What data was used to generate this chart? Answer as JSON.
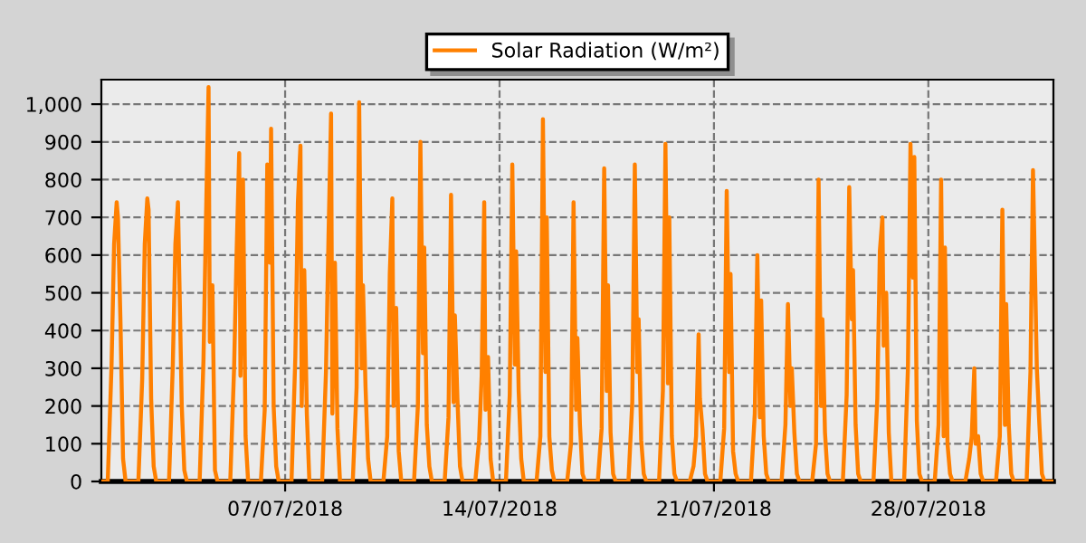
{
  "chart_data": {
    "type": "line",
    "xlim": [
      "2018-07-01T00:00",
      "2018-08-01T02:00"
    ],
    "xticks": [
      {
        "value": "2018-07-07",
        "label": "07/07/2018"
      },
      {
        "value": "2018-07-14",
        "label": "14/07/2018"
      },
      {
        "value": "2018-07-21",
        "label": "21/07/2018"
      },
      {
        "value": "2018-07-28",
        "label": "28/07/2018"
      }
    ],
    "ylim": [
      0,
      1065
    ],
    "yticks": [
      0,
      100,
      200,
      300,
      400,
      500,
      600,
      700,
      800,
      900,
      {
        "value": 1000,
        "label": "1,000"
      }
    ],
    "grid": true,
    "legend": "top",
    "line_style": "solid",
    "marker": "none",
    "series": [
      {
        "name": "Solar Radiation (W/m²)",
        "color": "#ff8000",
        "x": [
          "2018-07-01T00:00",
          "2018-07-01T05:00",
          "2018-07-01T08:00",
          "2018-07-01T10:00",
          "2018-07-01T12:00",
          "2018-07-01T13:00",
          "2018-07-01T15:00",
          "2018-07-01T17:00",
          "2018-07-01T19:00",
          "2018-07-02T05:00",
          "2018-07-02T08:00",
          "2018-07-02T10:00",
          "2018-07-02T12:00",
          "2018-07-02T13:00",
          "2018-07-02T15:00",
          "2018-07-02T17:00",
          "2018-07-02T19:00",
          "2018-07-03T05:00",
          "2018-07-03T08:00",
          "2018-07-03T10:00",
          "2018-07-03T12:00",
          "2018-07-03T13:00",
          "2018-07-03T15:00",
          "2018-07-03T17:00",
          "2018-07-03T19:00",
          "2018-07-04T05:00",
          "2018-07-04T08:00",
          "2018-07-04T10:00",
          "2018-07-04T12:00",
          "2018-07-04T13:00",
          "2018-07-04T15:00",
          "2018-07-04T17:00",
          "2018-07-04T19:00",
          "2018-07-05T05:00",
          "2018-07-05T08:00",
          "2018-07-05T10:00",
          "2018-07-05T12:00",
          "2018-07-05T13:00",
          "2018-07-05T15:00",
          "2018-07-05T17:00",
          "2018-07-05T19:00",
          "2018-07-06T05:00",
          "2018-07-06T08:00",
          "2018-07-06T10:00",
          "2018-07-06T12:00",
          "2018-07-06T13:00",
          "2018-07-06T15:00",
          "2018-07-06T17:00",
          "2018-07-06T19:00",
          "2018-07-07T05:00",
          "2018-07-07T08:00",
          "2018-07-07T10:00",
          "2018-07-07T12:00",
          "2018-07-07T13:00",
          "2018-07-07T15:00",
          "2018-07-07T17:00",
          "2018-07-07T19:00",
          "2018-07-08T05:00",
          "2018-07-08T08:00",
          "2018-07-08T10:00",
          "2018-07-08T12:00",
          "2018-07-08T13:00",
          "2018-07-08T15:00",
          "2018-07-08T17:00",
          "2018-07-08T19:00",
          "2018-07-09T05:00",
          "2018-07-09T08:00",
          "2018-07-09T10:00",
          "2018-07-09T12:00",
          "2018-07-09T13:00",
          "2018-07-09T15:00",
          "2018-07-09T17:00",
          "2018-07-09T19:00",
          "2018-07-10T05:00",
          "2018-07-10T08:00",
          "2018-07-10T10:00",
          "2018-07-10T12:00",
          "2018-07-10T13:00",
          "2018-07-10T15:00",
          "2018-07-10T17:00",
          "2018-07-10T19:00",
          "2018-07-11T05:00",
          "2018-07-11T08:00",
          "2018-07-11T10:00",
          "2018-07-11T12:00",
          "2018-07-11T13:00",
          "2018-07-11T15:00",
          "2018-07-11T17:00",
          "2018-07-11T19:00",
          "2018-07-12T05:00",
          "2018-07-12T08:00",
          "2018-07-12T10:00",
          "2018-07-12T12:00",
          "2018-07-12T13:00",
          "2018-07-12T15:00",
          "2018-07-12T17:00",
          "2018-07-12T19:00",
          "2018-07-13T05:00",
          "2018-07-13T08:00",
          "2018-07-13T10:00",
          "2018-07-13T12:00",
          "2018-07-13T13:00",
          "2018-07-13T15:00",
          "2018-07-13T17:00",
          "2018-07-13T19:00",
          "2018-07-14T05:00",
          "2018-07-14T08:00",
          "2018-07-14T10:00",
          "2018-07-14T12:00",
          "2018-07-14T13:00",
          "2018-07-14T15:00",
          "2018-07-14T17:00",
          "2018-07-14T19:00",
          "2018-07-15T05:00",
          "2018-07-15T08:00",
          "2018-07-15T10:00",
          "2018-07-15T12:00",
          "2018-07-15T13:00",
          "2018-07-15T15:00",
          "2018-07-15T17:00",
          "2018-07-15T19:00",
          "2018-07-16T05:00",
          "2018-07-16T08:00",
          "2018-07-16T10:00",
          "2018-07-16T12:00",
          "2018-07-16T13:00",
          "2018-07-16T15:00",
          "2018-07-16T17:00",
          "2018-07-16T19:00",
          "2018-07-17T05:00",
          "2018-07-17T08:00",
          "2018-07-17T10:00",
          "2018-07-17T12:00",
          "2018-07-17T13:00",
          "2018-07-17T15:00",
          "2018-07-17T17:00",
          "2018-07-17T19:00",
          "2018-07-18T05:00",
          "2018-07-18T08:00",
          "2018-07-18T10:00",
          "2018-07-18T12:00",
          "2018-07-18T13:00",
          "2018-07-18T15:00",
          "2018-07-18T17:00",
          "2018-07-18T19:00",
          "2018-07-19T05:00",
          "2018-07-19T08:00",
          "2018-07-19T10:00",
          "2018-07-19T12:00",
          "2018-07-19T13:00",
          "2018-07-19T15:00",
          "2018-07-19T17:00",
          "2018-07-19T19:00",
          "2018-07-20T05:00",
          "2018-07-20T08:00",
          "2018-07-20T10:00",
          "2018-07-20T12:00",
          "2018-07-20T13:00",
          "2018-07-20T15:00",
          "2018-07-20T17:00",
          "2018-07-20T19:00",
          "2018-07-21T05:00",
          "2018-07-21T08:00",
          "2018-07-21T10:00",
          "2018-07-21T12:00",
          "2018-07-21T13:00",
          "2018-07-21T15:00",
          "2018-07-21T17:00",
          "2018-07-21T19:00",
          "2018-07-22T05:00",
          "2018-07-22T08:00",
          "2018-07-22T10:00",
          "2018-07-22T12:00",
          "2018-07-22T13:00",
          "2018-07-22T15:00",
          "2018-07-22T17:00",
          "2018-07-22T19:00",
          "2018-07-23T05:00",
          "2018-07-23T08:00",
          "2018-07-23T10:00",
          "2018-07-23T12:00",
          "2018-07-23T13:00",
          "2018-07-23T15:00",
          "2018-07-23T17:00",
          "2018-07-23T19:00",
          "2018-07-24T05:00",
          "2018-07-24T08:00",
          "2018-07-24T10:00",
          "2018-07-24T12:00",
          "2018-07-24T13:00",
          "2018-07-24T15:00",
          "2018-07-24T17:00",
          "2018-07-24T19:00",
          "2018-07-25T05:00",
          "2018-07-25T08:00",
          "2018-07-25T10:00",
          "2018-07-25T12:00",
          "2018-07-25T13:00",
          "2018-07-25T15:00",
          "2018-07-25T17:00",
          "2018-07-25T19:00",
          "2018-07-26T05:00",
          "2018-07-26T08:00",
          "2018-07-26T10:00",
          "2018-07-26T12:00",
          "2018-07-26T13:00",
          "2018-07-26T15:00",
          "2018-07-26T17:00",
          "2018-07-26T19:00",
          "2018-07-27T05:00",
          "2018-07-27T08:00",
          "2018-07-27T10:00",
          "2018-07-27T12:00",
          "2018-07-27T13:00",
          "2018-07-27T15:00",
          "2018-07-27T17:00",
          "2018-07-27T19:00",
          "2018-07-28T05:00",
          "2018-07-28T08:00",
          "2018-07-28T10:00",
          "2018-07-28T12:00",
          "2018-07-28T13:00",
          "2018-07-28T15:00",
          "2018-07-28T17:00",
          "2018-07-28T19:00",
          "2018-07-29T05:00",
          "2018-07-29T08:00",
          "2018-07-29T10:00",
          "2018-07-29T12:00",
          "2018-07-29T13:00",
          "2018-07-29T15:00",
          "2018-07-29T17:00",
          "2018-07-29T19:00",
          "2018-07-30T05:00",
          "2018-07-30T08:00",
          "2018-07-30T10:00",
          "2018-07-30T12:00",
          "2018-07-30T13:00",
          "2018-07-30T15:00",
          "2018-07-30T17:00",
          "2018-07-30T19:00",
          "2018-07-31T05:00",
          "2018-07-31T08:00",
          "2018-07-31T10:00",
          "2018-07-31T12:00",
          "2018-07-31T13:00",
          "2018-07-31T15:00",
          "2018-07-31T17:00",
          "2018-07-31T19:00",
          "2018-08-01T02:00"
        ],
        "values": [
          0,
          0,
          310,
          630,
          740,
          700,
          420,
          60,
          0,
          0,
          270,
          630,
          750,
          720,
          220,
          40,
          0,
          0,
          310,
          630,
          740,
          560,
          200,
          30,
          0,
          0,
          320,
          700,
          1045,
          370,
          520,
          30,
          0,
          0,
          300,
          610,
          870,
          280,
          800,
          120,
          0,
          0,
          190,
          840,
          580,
          935,
          200,
          40,
          0,
          0,
          330,
          740,
          890,
          200,
          560,
          180,
          0,
          0,
          290,
          650,
          975,
          180,
          580,
          140,
          0,
          0,
          250,
          1005,
          300,
          520,
          250,
          60,
          0,
          0,
          120,
          550,
          750,
          200,
          460,
          80,
          0,
          0,
          200,
          900,
          340,
          620,
          150,
          40,
          0,
          0,
          170,
          760,
          210,
          440,
          220,
          40,
          0,
          0,
          110,
          280,
          740,
          190,
          330,
          60,
          0,
          0,
          230,
          840,
          310,
          610,
          240,
          60,
          0,
          0,
          120,
          960,
          290,
          700,
          120,
          30,
          0,
          0,
          100,
          740,
          190,
          380,
          150,
          20,
          0,
          0,
          140,
          830,
          240,
          520,
          130,
          20,
          0,
          0,
          210,
          840,
          290,
          430,
          110,
          20,
          0,
          0,
          240,
          895,
          260,
          700,
          120,
          20,
          0,
          0,
          40,
          120,
          390,
          220,
          140,
          20,
          0,
          0,
          140,
          770,
          290,
          550,
          80,
          20,
          0,
          0,
          180,
          600,
          170,
          480,
          120,
          20,
          0,
          0,
          150,
          470,
          200,
          300,
          130,
          20,
          0,
          0,
          100,
          800,
          200,
          430,
          130,
          20,
          0,
          0,
          230,
          780,
          430,
          560,
          150,
          20,
          0,
          0,
          220,
          610,
          700,
          360,
          500,
          130,
          0,
          0,
          300,
          895,
          540,
          860,
          160,
          20,
          0,
          0,
          150,
          800,
          120,
          620,
          100,
          20,
          0,
          0,
          60,
          120,
          300,
          100,
          120,
          20,
          0,
          0,
          120,
          720,
          150,
          470,
          150,
          20,
          0,
          0,
          290,
          825,
          480,
          300,
          150,
          20,
          0,
          0
        ]
      }
    ]
  }
}
